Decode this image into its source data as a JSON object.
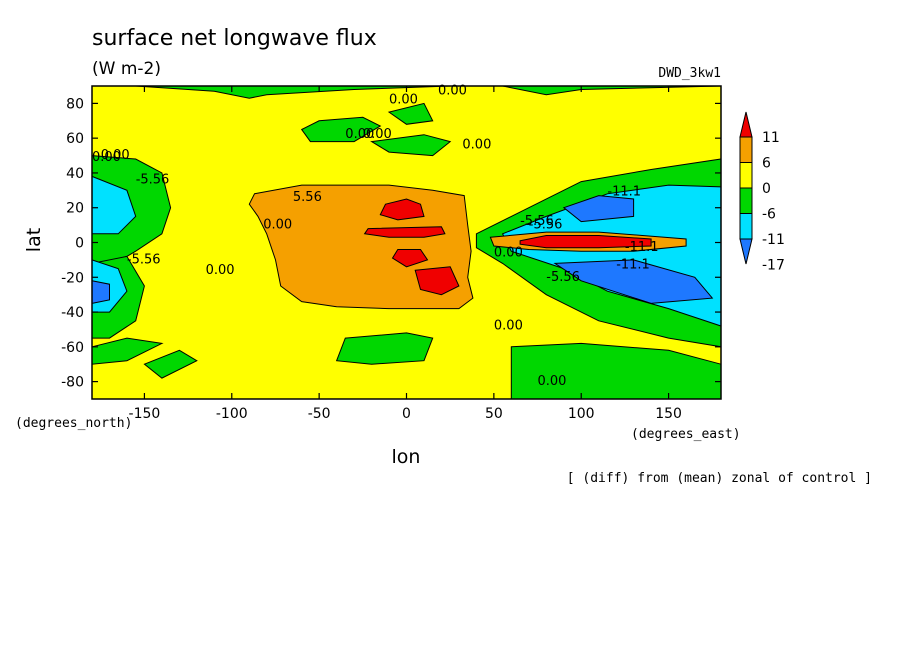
{
  "chart_data": {
    "type": "heatmap",
    "title": "surface net longwave flux",
    "units": "(W m-2)",
    "experiment": "DWD_3kw1",
    "caption": "[ (diff) from (mean) zonal of control ]",
    "xlabel": "lon",
    "ylabel": "lat",
    "x_unit_label": "(degrees_east)",
    "y_unit_label": "(degrees_north)",
    "xlim": [
      -180,
      180
    ],
    "ylim": [
      -90,
      90
    ],
    "x_ticks": [
      -150,
      -100,
      -50,
      0,
      50,
      100,
      150
    ],
    "y_ticks": [
      80,
      60,
      40,
      20,
      0,
      -20,
      -40,
      -60,
      -80
    ],
    "x_tick_labels": [
      "-150",
      "-100",
      "-50",
      "0",
      "50",
      "100",
      "150"
    ],
    "y_tick_labels": [
      "80",
      "60",
      "40",
      "20",
      "0",
      "-20",
      "-40",
      "-60",
      "-80"
    ],
    "colorbar": {
      "levels": [
        -17,
        -11,
        -6,
        0,
        6,
        11
      ],
      "labels": [
        "11",
        "6",
        "0",
        "-6",
        "-11",
        "-17"
      ],
      "colors": [
        "#1e78ff",
        "#00e1ff",
        "#00d700",
        "#ffff00",
        "#f5a000",
        "#f00000"
      ]
    },
    "contour_labels": [
      "0.00",
      "0.00",
      "0.00",
      "0.00",
      "0.00",
      "0.00",
      "0.00",
      "0.00",
      "0.00",
      "-5.56",
      "-5.56",
      "5.56",
      "-5.56",
      "-5.56",
      "-11.1",
      "-11.1",
      "-11.1",
      "-5.56",
      "0.00",
      "0.00",
      "0.00"
    ],
    "contour_label_pos": [
      [
        -10,
        80
      ],
      [
        18,
        85
      ],
      [
        -35,
        60
      ],
      [
        -82,
        8
      ],
      [
        -25,
        60
      ],
      [
        -175,
        48
      ],
      [
        -180,
        47
      ],
      [
        32,
        54
      ],
      [
        -115,
        -18
      ],
      [
        -155,
        34
      ],
      [
        -160,
        -12
      ],
      [
        -65,
        24
      ],
      [
        65,
        10
      ],
      [
        80,
        -22
      ],
      [
        115,
        27
      ],
      [
        125,
        -5
      ],
      [
        120,
        -15
      ],
      [
        70,
        8
      ],
      [
        50,
        -50
      ],
      [
        50,
        -8
      ],
      [
        75,
        -82
      ]
    ],
    "regions": [
      {
        "value": "5.56",
        "level": 6,
        "poly": [
          [
            -87,
            28
          ],
          [
            -60,
            33
          ],
          [
            -10,
            33
          ],
          [
            15,
            30
          ],
          [
            33,
            27
          ],
          [
            35,
            10
          ],
          [
            37,
            -5
          ],
          [
            35,
            -20
          ],
          [
            38,
            -32
          ],
          [
            30,
            -38
          ],
          [
            -10,
            -38
          ],
          [
            -40,
            -37
          ],
          [
            -60,
            -34
          ],
          [
            -72,
            -25
          ],
          [
            -75,
            -10
          ],
          [
            -80,
            5
          ],
          [
            -85,
            15
          ],
          [
            -90,
            22
          ]
        ]
      },
      {
        "value": "11",
        "level": 11,
        "poly": [
          [
            -12,
            22
          ],
          [
            0,
            25
          ],
          [
            8,
            22
          ],
          [
            10,
            15
          ],
          [
            -5,
            13
          ],
          [
            -15,
            16
          ]
        ]
      },
      {
        "value": "11",
        "level": 11,
        "poly": [
          [
            -22,
            8
          ],
          [
            20,
            9
          ],
          [
            22,
            5
          ],
          [
            10,
            3
          ],
          [
            -10,
            3
          ],
          [
            -24,
            5
          ]
        ]
      },
      {
        "value": "11",
        "level": 11,
        "poly": [
          [
            -5,
            -4
          ],
          [
            8,
            -4
          ],
          [
            12,
            -10
          ],
          [
            0,
            -14
          ],
          [
            -8,
            -9
          ]
        ]
      },
      {
        "value": "11",
        "level": 11,
        "poly": [
          [
            5,
            -16
          ],
          [
            25,
            -14
          ],
          [
            30,
            -25
          ],
          [
            20,
            -30
          ],
          [
            8,
            -27
          ]
        ]
      },
      {
        "value": "-5.56",
        "level": -6,
        "poly": [
          [
            -180,
            50
          ],
          [
            -155,
            48
          ],
          [
            -140,
            40
          ],
          [
            -135,
            20
          ],
          [
            -140,
            5
          ],
          [
            -155,
            -5
          ],
          [
            -160,
            -8
          ],
          [
            -175,
            -12
          ],
          [
            -180,
            -12
          ]
        ]
      },
      {
        "value": "-11.1",
        "level": -11,
        "poly": [
          [
            -180,
            38
          ],
          [
            -160,
            30
          ],
          [
            -155,
            15
          ],
          [
            -165,
            5
          ],
          [
            -180,
            5
          ]
        ]
      },
      {
        "value": "-5.56",
        "level": -6,
        "poly": [
          [
            -180,
            -12
          ],
          [
            -160,
            -8
          ],
          [
            -150,
            -25
          ],
          [
            -155,
            -45
          ],
          [
            -170,
            -55
          ],
          [
            -180,
            -55
          ]
        ]
      },
      {
        "value": "-11.1",
        "level": -11,
        "poly": [
          [
            -180,
            -10
          ],
          [
            -165,
            -15
          ],
          [
            -160,
            -28
          ],
          [
            -170,
            -40
          ],
          [
            -180,
            -40
          ]
        ]
      },
      {
        "value": "-17",
        "level": -17,
        "poly": [
          [
            -180,
            -22
          ],
          [
            -170,
            -24
          ],
          [
            -170,
            -33
          ],
          [
            -180,
            -35
          ]
        ]
      },
      {
        "value": "-5.56",
        "level": -6,
        "poly": [
          [
            40,
            5
          ],
          [
            60,
            15
          ],
          [
            100,
            35
          ],
          [
            140,
            42
          ],
          [
            180,
            48
          ],
          [
            180,
            -60
          ],
          [
            150,
            -55
          ],
          [
            110,
            -45
          ],
          [
            80,
            -30
          ],
          [
            55,
            -12
          ],
          [
            40,
            -3
          ]
        ]
      },
      {
        "value": "-11.1",
        "level": -11,
        "poly": [
          [
            55,
            5
          ],
          [
            80,
            15
          ],
          [
            115,
            28
          ],
          [
            150,
            33
          ],
          [
            180,
            32
          ],
          [
            180,
            -48
          ],
          [
            150,
            -38
          ],
          [
            115,
            -28
          ],
          [
            90,
            -15
          ],
          [
            60,
            -5
          ]
        ]
      },
      {
        "value": "-17",
        "level": -17,
        "poly": [
          [
            90,
            20
          ],
          [
            110,
            27
          ],
          [
            130,
            25
          ],
          [
            130,
            15
          ],
          [
            100,
            12
          ]
        ]
      },
      {
        "value": "-17",
        "level": -17,
        "poly": [
          [
            85,
            -12
          ],
          [
            130,
            -10
          ],
          [
            165,
            -20
          ],
          [
            175,
            -32
          ],
          [
            140,
            -35
          ],
          [
            100,
            -22
          ]
        ]
      },
      {
        "value": "6",
        "level": 6,
        "poly": [
          [
            48,
            3
          ],
          [
            80,
            6
          ],
          [
            110,
            6
          ],
          [
            135,
            4
          ],
          [
            160,
            2
          ],
          [
            160,
            -2
          ],
          [
            130,
            -5
          ],
          [
            100,
            -5
          ],
          [
            70,
            -4
          ],
          [
            50,
            -2
          ]
        ]
      },
      {
        "value": "11",
        "level": 11,
        "poly": [
          [
            65,
            1
          ],
          [
            80,
            4
          ],
          [
            110,
            4
          ],
          [
            140,
            2
          ],
          [
            140,
            -2
          ],
          [
            110,
            -3
          ],
          [
            80,
            -3
          ],
          [
            65,
            -1
          ]
        ]
      },
      {
        "value": "-6",
        "level": -6,
        "poly": [
          [
            -155,
            90
          ],
          [
            -110,
            87
          ],
          [
            -90,
            83
          ],
          [
            -80,
            85
          ],
          [
            -30,
            88
          ],
          [
            25,
            90
          ],
          [
            -155,
            90
          ]
        ]
      },
      {
        "value": "-6",
        "level": -6,
        "poly": [
          [
            -60,
            65
          ],
          [
            -50,
            70
          ],
          [
            -25,
            72
          ],
          [
            -15,
            67
          ],
          [
            -30,
            58
          ],
          [
            -55,
            58
          ]
        ]
      },
      {
        "value": "-6",
        "level": -6,
        "poly": [
          [
            -10,
            75
          ],
          [
            10,
            80
          ],
          [
            15,
            70
          ],
          [
            0,
            68
          ]
        ]
      },
      {
        "value": "-6",
        "level": -6,
        "poly": [
          [
            0,
            90
          ],
          [
            55,
            90
          ],
          [
            80,
            85
          ],
          [
            100,
            88
          ],
          [
            180,
            90
          ]
        ]
      },
      {
        "value": "-6",
        "level": -6,
        "poly": [
          [
            -20,
            58
          ],
          [
            10,
            62
          ],
          [
            25,
            58
          ],
          [
            15,
            50
          ],
          [
            -10,
            52
          ]
        ]
      },
      {
        "value": "-6",
        "level": -6,
        "poly": [
          [
            -35,
            -55
          ],
          [
            0,
            -52
          ],
          [
            15,
            -55
          ],
          [
            10,
            -68
          ],
          [
            -20,
            -70
          ],
          [
            -40,
            -68
          ]
        ]
      },
      {
        "value": "-6",
        "level": -6,
        "poly": [
          [
            -150,
            -70
          ],
          [
            -130,
            -62
          ],
          [
            -120,
            -68
          ],
          [
            -140,
            -78
          ]
        ]
      },
      {
        "value": "-6",
        "level": -6,
        "poly": [
          [
            60,
            -60
          ],
          [
            100,
            -58
          ],
          [
            150,
            -62
          ],
          [
            180,
            -70
          ],
          [
            180,
            -90
          ],
          [
            60,
            -90
          ]
        ]
      },
      {
        "value": "-6",
        "level": -6,
        "poly": [
          [
            -180,
            -60
          ],
          [
            -160,
            -55
          ],
          [
            -140,
            -58
          ],
          [
            -160,
            -68
          ],
          [
            -180,
            -70
          ]
        ]
      }
    ]
  }
}
